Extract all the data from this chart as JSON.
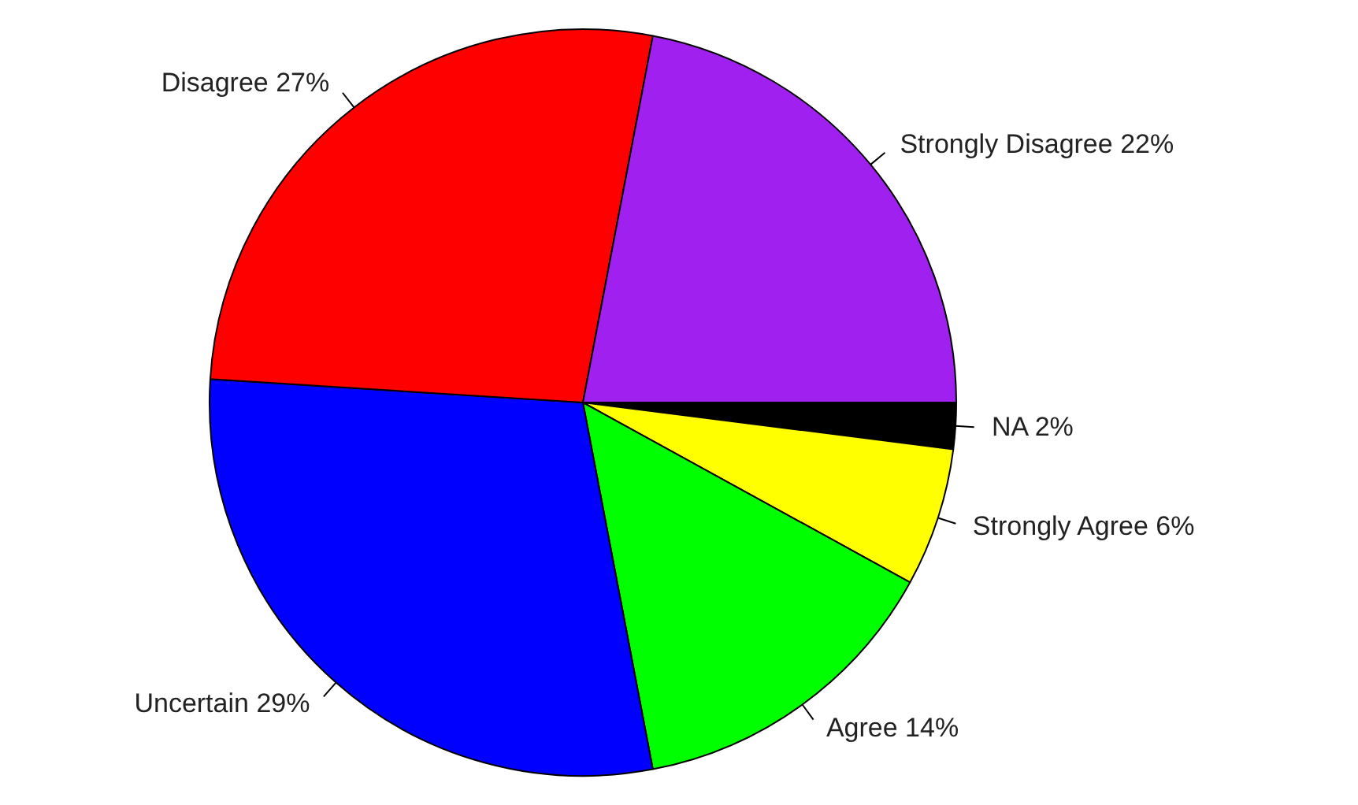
{
  "chart_data": {
    "type": "pie",
    "categories": [
      "NA",
      "Strongly Agree",
      "Agree",
      "Uncertain",
      "Disagree",
      "Strongly Disagree"
    ],
    "values": [
      2,
      6,
      14,
      29,
      27,
      22
    ],
    "value_labels": [
      "2%",
      "6%",
      "14%",
      "29%",
      "27%",
      "22%"
    ],
    "colors": [
      "#000000",
      "#ffff00",
      "#00ff00",
      "#0000ff",
      "#ff0000",
      "#a020f0"
    ],
    "legend": false
  }
}
